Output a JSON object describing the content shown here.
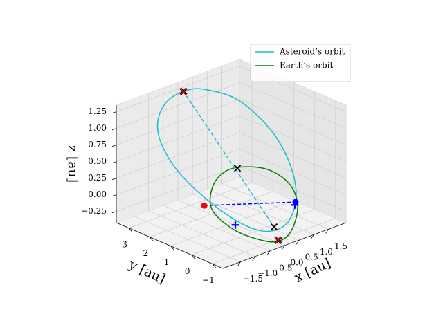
{
  "chart_data": {
    "type": "line3d",
    "xlabel": "x [au]",
    "ylabel": "y [au]",
    "zlabel": "z [au]",
    "xlim": [
      -2.1,
      2.1
    ],
    "ylim": [
      -1.5,
      3.6
    ],
    "zlim": [
      -0.42,
      1.35
    ],
    "xticks": [
      {
        "value": -1.5,
        "label": "−1.5"
      },
      {
        "value": -1.0,
        "label": "−1.0"
      },
      {
        "value": -0.5,
        "label": "−0.5"
      },
      {
        "value": 0,
        "label": "0.0"
      },
      0.5,
      {
        "value": 1.0,
        "label": "1.0"
      },
      1.5
    ],
    "yticks": [
      {
        "value": -1,
        "label": "−1"
      },
      0,
      1,
      2,
      3
    ],
    "zticks": [
      {
        "value": -0.25,
        "label": "−0.25"
      },
      {
        "value": 0,
        "label": "0.00"
      },
      0.25,
      {
        "value": 0.5,
        "label": "0.50"
      },
      0.75,
      {
        "value": 1,
        "label": "1.00"
      },
      1.25
    ],
    "grid": true,
    "legend": "upper right",
    "series": [
      {
        "name": "Asteroid’s orbit",
        "color": "#17becf",
        "closed": true,
        "x": [
          0.118,
          0.398,
          0.865,
          1.313,
          1.566,
          1.64,
          1.547,
          1.379,
          1.145,
          0.818,
          0.398,
          -0.118,
          -0.66,
          -0.755,
          -0.472
        ],
        "y": [
          3.5,
          2.9,
          1.9,
          0.94,
          0.4,
          0.24,
          0.44,
          0.8,
          1.3,
          2.0,
          2.9,
          3.5,
          3.5,
          3.5,
          3.5
        ],
        "z": [
          1.208,
          1.274,
          1.166,
          0.753,
          0.263,
          -0.196,
          -0.552,
          -0.718,
          -0.758,
          -0.642,
          -0.351,
          0.07,
          0.575,
          0.903,
          1.138
        ]
      },
      {
        "name": "Earth’s orbit",
        "color": "#008000",
        "closed": true,
        "x": [
          -0.323,
          0.573,
          1.281,
          1.517,
          1.281,
          0.809,
          0.101,
          -0.724,
          -1.408,
          -1.384,
          -0.96
        ],
        "y": [
          0,
          0,
          0,
          0,
          0,
          0,
          0,
          0,
          0,
          0,
          0
        ],
        "z": [
          0.615,
          0.417,
          0.072,
          -0.3,
          -0.626,
          -0.695,
          -0.537,
          -0.246,
          0.157,
          0.487,
          0.647
        ]
      }
    ],
    "dashed_lines": [
      {
        "color": "#17becf",
        "x": [
          0.118,
          1.342
        ],
        "y": [
          3.5,
          0.88
        ],
        "z": [
          1.208,
          -0.681
        ]
      },
      {
        "color": "#0000ff",
        "x": [
          -1.667,
          1.446
        ],
        "y": [
          0,
          0
        ],
        "z": [
          0.252,
          -0.205
        ]
      }
    ],
    "markers": [
      {
        "marker": "x",
        "color": "#000000",
        "x": -0.535,
        "y": 0,
        "z": 0.629
      },
      {
        "marker": "x",
        "color": "#000000",
        "x": 1.342,
        "y": 0.88,
        "z": -0.681
      },
      {
        "marker": "x",
        "color": "#ff0000",
        "edgecolor": "#000000",
        "x": 0.118,
        "y": 3.5,
        "z": 1.208
      },
      {
        "marker": "x",
        "color": "#ff0000",
        "edgecolor": "#000000",
        "x": 0.856,
        "y": 0,
        "z": -0.682
      },
      {
        "marker": "+",
        "color": "#0000ff",
        "x": -0.606,
        "y": 0,
        "z": -0.213
      },
      {
        "marker": "+",
        "color": "#0000ff",
        "x": 1.422,
        "y": 0,
        "z": -0.243
      },
      {
        "marker": "o",
        "color": "#ff0000",
        "x": -1.667,
        "y": 0,
        "z": 0.252
      },
      {
        "marker": "o",
        "color": "#0000ff",
        "x": 1.446,
        "y": 0,
        "z": -0.205
      }
    ]
  }
}
